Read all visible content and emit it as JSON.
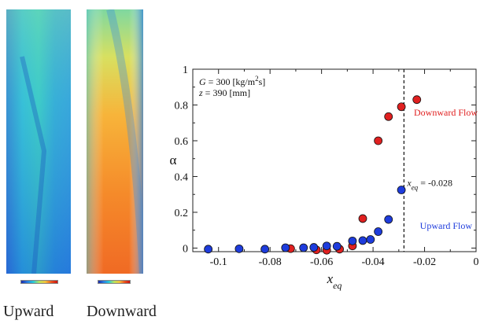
{
  "images": {
    "left_caption": "Upward",
    "right_caption": "Downward"
  },
  "chart_data": {
    "type": "scatter",
    "xlabel": "x_eq",
    "ylabel": "α",
    "xlim": [
      -0.11,
      0
    ],
    "ylim": [
      -0.02,
      1
    ],
    "xticks": [
      "-0.1",
      "-0.08",
      "-0.06",
      "-0.04",
      "-0.02",
      "0"
    ],
    "yticks": [
      "0",
      "0.2",
      "0.4",
      "0.6",
      "0.8",
      "1"
    ],
    "conditions": [
      "G = 300 [kg/m²s]",
      "z = 390 [mm]"
    ],
    "vline": {
      "x": -0.028,
      "label": "x_eq = -0.028"
    },
    "series": [
      {
        "name": "Downward Flow",
        "color": "#e02020",
        "points": [
          [
            -0.072,
            -0.003
          ],
          [
            -0.062,
            -0.01
          ],
          [
            -0.058,
            -0.012
          ],
          [
            -0.053,
            -0.006
          ],
          [
            -0.048,
            0.012
          ],
          [
            -0.044,
            0.165
          ],
          [
            -0.038,
            0.6
          ],
          [
            -0.034,
            0.735
          ],
          [
            -0.029,
            0.79
          ],
          [
            -0.023,
            0.83
          ]
        ]
      },
      {
        "name": "Upward Flow",
        "color": "#1e3cdc",
        "points": [
          [
            -0.104,
            -0.006
          ],
          [
            -0.092,
            -0.004
          ],
          [
            -0.082,
            -0.006
          ],
          [
            -0.074,
            0.002
          ],
          [
            -0.067,
            0.002
          ],
          [
            -0.063,
            0.004
          ],
          [
            -0.058,
            0.012
          ],
          [
            -0.054,
            0.01
          ],
          [
            -0.048,
            0.04
          ],
          [
            -0.044,
            0.042
          ],
          [
            -0.041,
            0.048
          ],
          [
            -0.038,
            0.092
          ],
          [
            -0.034,
            0.16
          ],
          [
            -0.029,
            0.325
          ]
        ]
      }
    ]
  }
}
